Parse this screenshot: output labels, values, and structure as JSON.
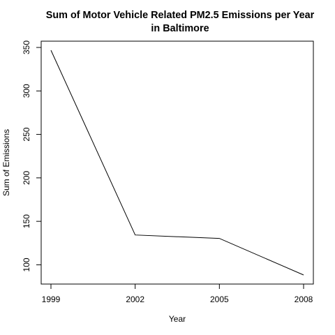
{
  "chart_data": {
    "type": "line",
    "title_lines": [
      "Sum of Motor Vehicle Related PM2.5 Emissions per Year",
      "in Baltimore"
    ],
    "xlabel": "Year",
    "ylabel": "Sum of Emissions",
    "x": [
      1999,
      2002,
      2005,
      2008
    ],
    "y": [
      346.8,
      134.3,
      130.4,
      88.3
    ],
    "xlim": [
      1999,
      2008
    ],
    "ylim": [
      88.3,
      346.8
    ],
    "x_ticks": [
      1999,
      2002,
      2005,
      2008
    ],
    "y_ticks": [
      100,
      150,
      200,
      250,
      300,
      350
    ],
    "grid": false,
    "line_color": "#000000"
  }
}
